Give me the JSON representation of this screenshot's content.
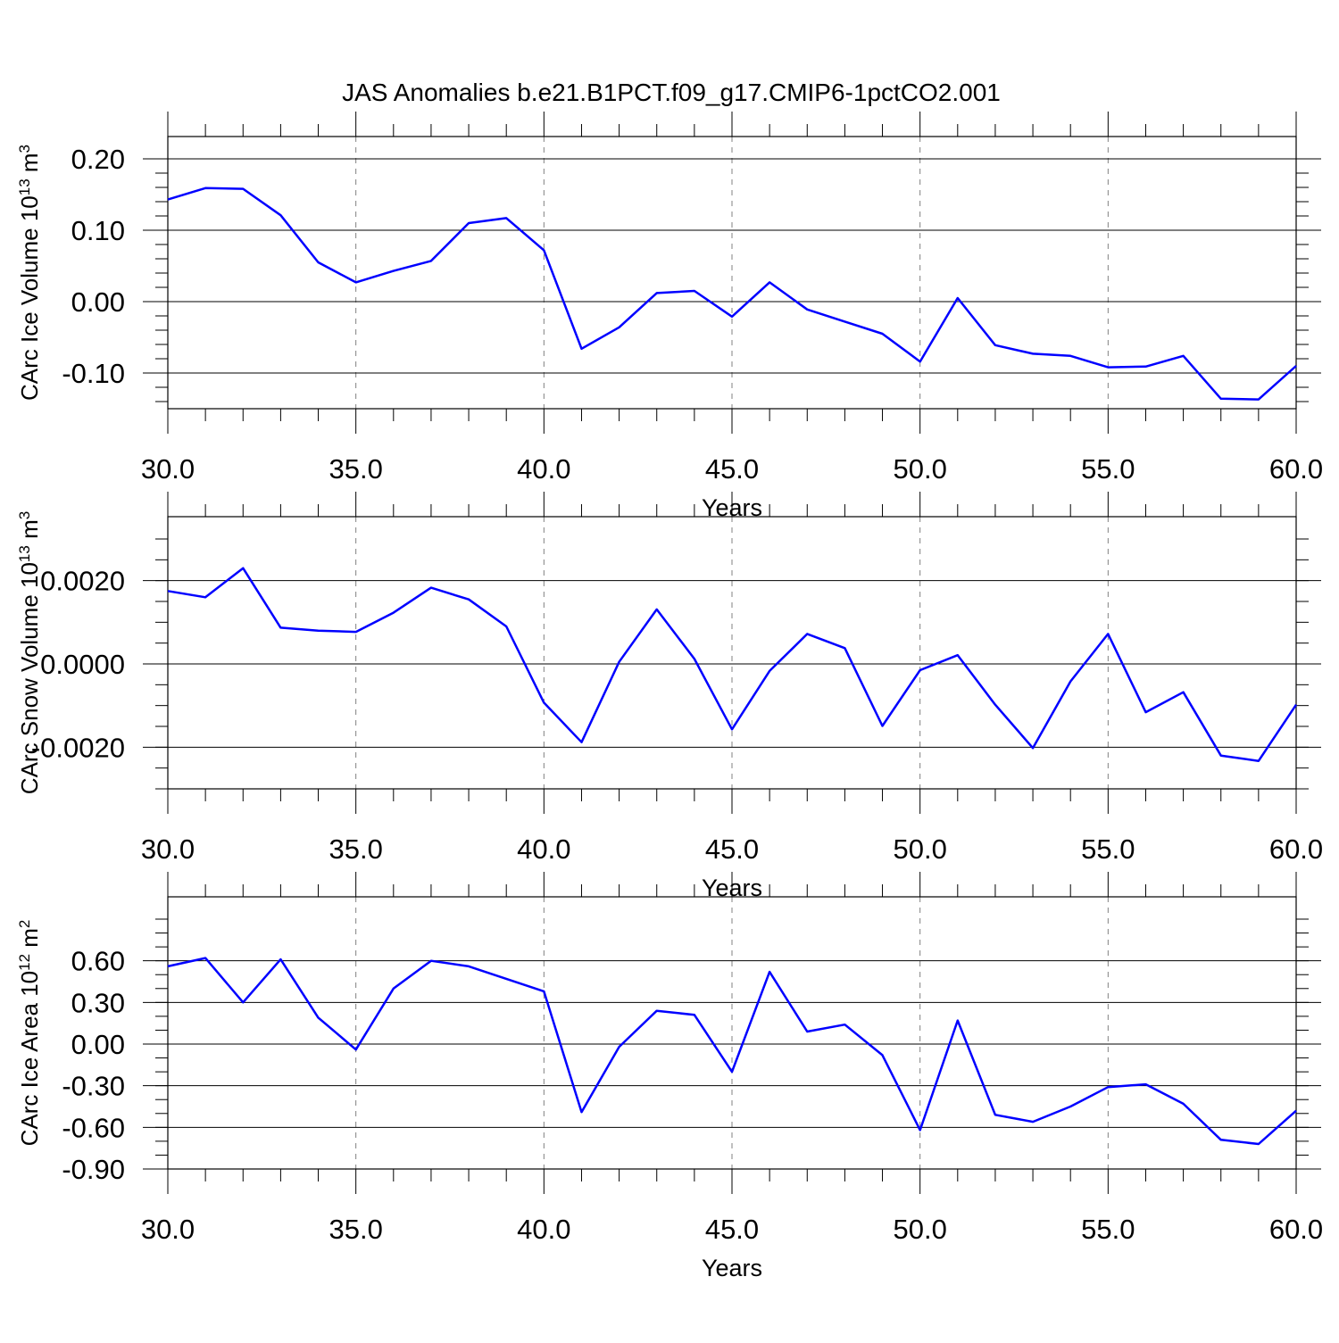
{
  "title": "JAS Anomalies b.e21.B1PCT.f09_g17.CMIP6-1pctCO2.001",
  "colors": {
    "series": "#0000ff",
    "axis": "#000000",
    "grid": "#808080"
  },
  "chart_data": [
    {
      "type": "line",
      "ylabel": "CArc Ice Volume 10",
      "ylabel_sup": "13",
      "ylabel_unit": " m",
      "ylabel_unit_sup": "3",
      "xlabel": "Years",
      "xlim": [
        30,
        60
      ],
      "ylim": [
        -0.15,
        0.2
      ],
      "xticks": [
        "30.0",
        "35.0",
        "40.0",
        "45.0",
        "50.0",
        "55.0",
        "60.0"
      ],
      "yticks": [
        {
          "v": 0.2,
          "label": "0.20"
        },
        {
          "v": 0.1,
          "label": "0.10"
        },
        {
          "v": 0.0,
          "label": "0.00"
        },
        {
          "v": -0.1,
          "label": "-0.10"
        }
      ],
      "yminor": 0.02,
      "grid": "vertical-dashed-at-major",
      "series": [
        {
          "x": [
            30,
            31,
            32,
            33,
            34,
            35,
            36,
            37,
            38,
            39,
            40,
            41,
            42,
            43,
            44,
            45,
            46,
            47,
            48,
            49,
            50,
            51,
            52,
            53,
            54,
            55,
            56,
            57,
            58,
            59,
            60
          ],
          "values": [
            0.143,
            0.159,
            0.158,
            0.121,
            0.055,
            0.027,
            0.043,
            0.057,
            0.11,
            0.117,
            0.072,
            -0.066,
            -0.036,
            0.012,
            0.015,
            -0.021,
            0.027,
            -0.011,
            -0.028,
            -0.045,
            -0.084,
            0.005,
            -0.061,
            -0.073,
            -0.076,
            -0.092,
            -0.091,
            -0.076,
            -0.136,
            -0.137,
            -0.09
          ]
        }
      ]
    },
    {
      "type": "line",
      "ylabel": "CArc Snow Volume 10",
      "ylabel_sup": "13",
      "ylabel_unit": " m",
      "ylabel_unit_sup": "3",
      "xlabel": "Years",
      "xlim": [
        30,
        60
      ],
      "ylim": [
        -0.003,
        0.003
      ],
      "xticks": [
        "30.0",
        "35.0",
        "40.0",
        "45.0",
        "50.0",
        "55.0",
        "60.0"
      ],
      "yticks": [
        {
          "v": 0.002,
          "label": "0.0020"
        },
        {
          "v": 0.0,
          "label": "0.0000"
        },
        {
          "v": -0.002,
          "label": "-0.0020"
        }
      ],
      "yminor": 0.0005,
      "grid": "vertical-dashed-at-major",
      "series": [
        {
          "x": [
            30,
            31,
            32,
            33,
            34,
            35,
            36,
            37,
            38,
            39,
            40,
            41,
            42,
            43,
            44,
            45,
            46,
            47,
            48,
            49,
            50,
            51,
            52,
            53,
            54,
            55,
            56,
            57,
            58,
            59,
            60
          ],
          "values": [
            0.00175,
            0.0016,
            0.0023,
            0.00087,
            0.0008,
            0.00077,
            0.00123,
            0.00183,
            0.00155,
            0.0009,
            -0.00093,
            -0.00188,
            5e-05,
            0.00131,
            0.00012,
            -0.00157,
            -0.00017,
            0.00072,
            0.00038,
            -0.00149,
            -0.00015,
            0.00021,
            -0.00098,
            -0.00202,
            -0.00042,
            0.00072,
            -0.00116,
            -0.00068,
            -0.0022,
            -0.00233,
            -0.00098
          ]
        }
      ]
    },
    {
      "type": "line",
      "ylabel": "CArc Ice Area 10",
      "ylabel_sup": "12",
      "ylabel_unit": " m",
      "ylabel_unit_sup": "2",
      "xlabel": "Years",
      "xlim": [
        30,
        60
      ],
      "ylim": [
        -0.9,
        0.9
      ],
      "xticks": [
        "30.0",
        "35.0",
        "40.0",
        "45.0",
        "50.0",
        "55.0",
        "60.0"
      ],
      "yticks": [
        {
          "v": 0.6,
          "label": "0.60"
        },
        {
          "v": 0.3,
          "label": "0.30"
        },
        {
          "v": 0.0,
          "label": "0.00"
        },
        {
          "v": -0.3,
          "label": "-0.30"
        },
        {
          "v": -0.6,
          "label": "-0.60"
        },
        {
          "v": -0.9,
          "label": "-0.90"
        }
      ],
      "yminor": 0.1,
      "grid": "vertical-dashed-at-major",
      "series": [
        {
          "x": [
            30,
            31,
            32,
            33,
            34,
            35,
            36,
            37,
            38,
            39,
            40,
            41,
            42,
            43,
            44,
            45,
            46,
            47,
            48,
            49,
            50,
            51,
            52,
            53,
            54,
            55,
            56,
            57,
            58,
            59,
            60
          ],
          "values": [
            0.56,
            0.62,
            0.3,
            0.61,
            0.19,
            -0.04,
            0.4,
            0.6,
            0.56,
            0.47,
            0.38,
            -0.49,
            -0.02,
            0.24,
            0.21,
            -0.2,
            0.52,
            0.09,
            0.14,
            -0.08,
            -0.62,
            0.17,
            -0.51,
            -0.56,
            -0.45,
            -0.31,
            -0.29,
            -0.43,
            -0.69,
            -0.72,
            -0.48
          ]
        }
      ]
    }
  ]
}
